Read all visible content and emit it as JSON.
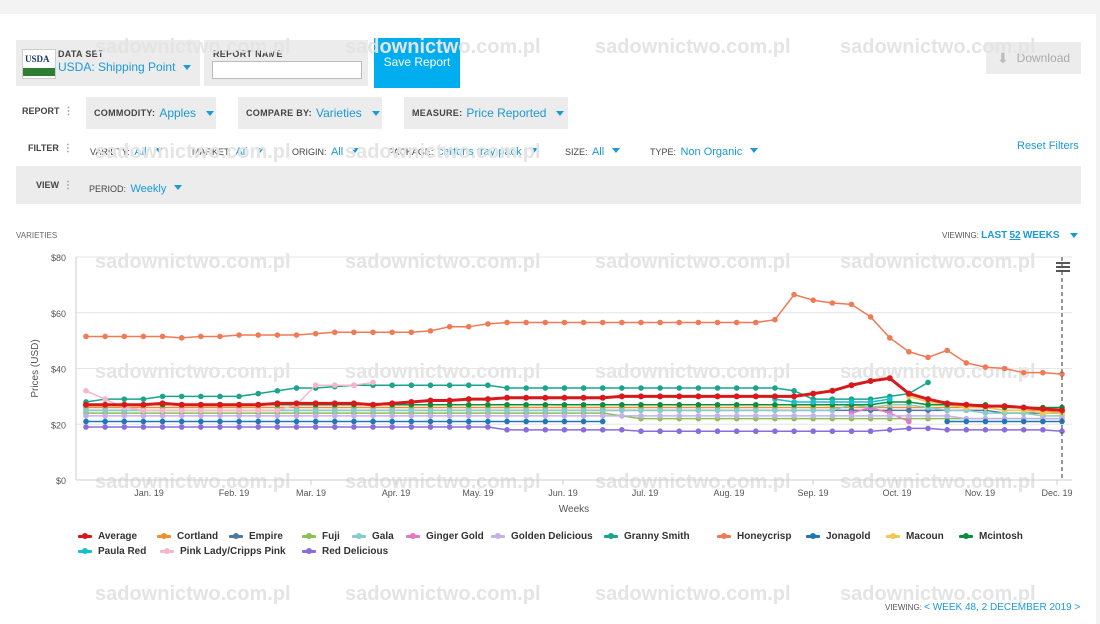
{
  "header": {
    "dataset_label": "DATA SET",
    "dataset_value": "USDA: Shipping Point",
    "logo_text": "USDA",
    "report_name_label": "REPORT NAME",
    "report_name_value": "",
    "save_label": "Save Report",
    "download_label": "Download"
  },
  "report_row": {
    "label": "REPORT",
    "commodity_label": "COMMODITY:",
    "commodity_value": "Apples",
    "compare_label": "COMPARE BY:",
    "compare_value": "Varieties",
    "measure_label": "MEASURE:",
    "measure_value": "Price Reported"
  },
  "filter_row": {
    "label": "FILTER",
    "variety_label": "VARIETY:",
    "variety_value": "All",
    "market_label": "MARKET:",
    "market_value": "All",
    "origin_label": "ORIGIN:",
    "origin_value": "All",
    "package_label": "PACKAGE:",
    "package_value": "cartons tray pack",
    "size_label": "SIZE:",
    "size_value": "All",
    "type_label": "TYPE:",
    "type_value": "Non Organic",
    "reset_label": "Reset Filters"
  },
  "view_row": {
    "label": "VIEW",
    "period_label": "PERIOD:",
    "period_value": "Weekly"
  },
  "chart_header": {
    "section_label": "VARIETIES",
    "viewing_label": "VIEWING:",
    "viewing_value_prefix": "LAST",
    "viewing_value_num": "52",
    "viewing_value_suffix": "WEEKS"
  },
  "footer": {
    "viewing_label": "VIEWING:",
    "viewing_value": "< WEEK 48, 2 DECEMBER 2019 >"
  },
  "watermark": "sadownictwo.com.pl",
  "chart_data": {
    "type": "line",
    "xlabel": "Weeks",
    "ylabel": "Prices (USD)",
    "ylim": [
      0,
      80
    ],
    "yticks": [
      "$0",
      "$20",
      "$40",
      "$60",
      "$80"
    ],
    "xticks": [
      "Jan. 19",
      "Feb. 19",
      "Mar. 19",
      "Apr. 19",
      "May. 19",
      "Jun. 19",
      "Jul. 19",
      "Aug. 19",
      "Sep. 19",
      "Oct. 19",
      "Nov. 19",
      "Dec. 19"
    ],
    "grid": true,
    "legend_position": "bottom",
    "series": [
      {
        "name": "Average",
        "color": "#d7191c",
        "width": 3,
        "values": [
          27,
          27,
          27,
          27,
          27.5,
          27,
          27,
          27,
          27,
          27,
          27.5,
          27.5,
          27.5,
          27.5,
          27.5,
          27,
          27.5,
          28,
          28.5,
          28.5,
          29,
          29,
          29.5,
          29.5,
          29.5,
          29.5,
          29.5,
          29.5,
          30,
          30,
          30,
          30,
          30,
          30,
          30,
          30,
          30,
          30,
          31,
          32,
          34,
          35.5,
          36.5,
          31,
          29,
          27.5,
          27,
          26.5,
          26.5,
          26,
          25.5,
          25
        ]
      },
      {
        "name": "Cortland",
        "color": "#f28e2b",
        "values": [
          26,
          26,
          26,
          26,
          26,
          26,
          26,
          26,
          26,
          26,
          26,
          26,
          26,
          26,
          26,
          26,
          26,
          26,
          26,
          26,
          26,
          26,
          26,
          26,
          26,
          26,
          26,
          26,
          26,
          26,
          26,
          26,
          26,
          26,
          26,
          26,
          26,
          26,
          26,
          26,
          26,
          26,
          26,
          26,
          26,
          26,
          26,
          26,
          25,
          25,
          25,
          24
        ]
      },
      {
        "name": "Empire",
        "color": "#4e79a7",
        "values": [
          25,
          25,
          25,
          25,
          25,
          25,
          25,
          25,
          25,
          25,
          25,
          25,
          25,
          25,
          25,
          25,
          25,
          25,
          25,
          25,
          25,
          25,
          25,
          25,
          25,
          25,
          25,
          25,
          25,
          25,
          25,
          25,
          25,
          25,
          25,
          25,
          25,
          25,
          25,
          25,
          25,
          25,
          25,
          25,
          25,
          25,
          25,
          25,
          24,
          24,
          24,
          24
        ]
      },
      {
        "name": "Fuji",
        "color": "#8cc152",
        "values": [
          24,
          24,
          24,
          24,
          24,
          24,
          24,
          24,
          24,
          24,
          24,
          24,
          24,
          24,
          24,
          24,
          24,
          24,
          24,
          24,
          24,
          24,
          24,
          24,
          24,
          24,
          24,
          24,
          23,
          22,
          22,
          22,
          22,
          22,
          22,
          22,
          22,
          22,
          22,
          22,
          22,
          22,
          22,
          22,
          22,
          22,
          22,
          22,
          22,
          22,
          22,
          22
        ]
      },
      {
        "name": "Gala",
        "color": "#86cccc",
        "values": [
          25,
          25,
          25,
          25,
          25,
          25,
          25,
          25,
          25,
          25,
          25,
          25,
          25,
          25,
          25,
          25,
          25,
          25,
          25,
          25,
          25,
          25,
          25,
          25,
          25,
          25,
          25,
          25,
          25,
          25,
          25,
          25,
          25,
          25,
          25,
          25,
          25,
          25,
          25,
          25,
          27,
          26,
          27,
          27,
          26,
          25,
          25,
          24,
          24,
          24,
          23,
          23
        ]
      },
      {
        "name": "Ginger Gold",
        "color": "#e377c2",
        "values": [
          null,
          null,
          null,
          null,
          null,
          null,
          null,
          null,
          null,
          null,
          null,
          null,
          null,
          null,
          null,
          null,
          null,
          null,
          null,
          null,
          null,
          null,
          null,
          null,
          null,
          null,
          null,
          null,
          null,
          null,
          null,
          null,
          null,
          null,
          null,
          null,
          null,
          null,
          null,
          null,
          24,
          26,
          24,
          21,
          null,
          null,
          null,
          null,
          null,
          null,
          null,
          null
        ]
      },
      {
        "name": "Golden Delicious",
        "color": "#c5b0e8",
        "values": [
          23,
          23,
          23,
          23,
          23,
          23,
          23,
          23,
          23,
          23,
          23,
          23,
          23,
          23,
          23,
          23,
          23,
          23,
          23,
          23,
          23,
          23,
          23,
          23,
          23,
          23,
          23,
          23,
          23,
          23,
          23,
          23,
          23,
          23,
          23,
          23,
          23,
          23,
          23,
          23,
          23,
          23,
          23,
          23,
          23,
          23,
          22,
          22,
          22,
          22,
          22,
          22
        ]
      },
      {
        "name": "Granny Smith",
        "color": "#19a58c",
        "values": [
          28,
          29,
          29,
          29,
          30,
          30,
          30,
          30,
          30,
          31,
          32,
          33,
          33,
          33.5,
          34,
          34,
          34,
          34,
          34,
          34,
          34,
          34,
          33,
          33,
          33,
          33,
          33,
          33,
          33,
          33,
          33,
          33,
          33,
          33,
          33,
          33,
          33,
          32,
          29,
          29,
          29,
          29,
          30,
          31,
          35,
          null,
          null,
          null,
          null,
          null,
          null,
          null
        ]
      },
      {
        "name": "Honeycrisp",
        "color": "#f07a55",
        "values": [
          51.5,
          51.5,
          51.5,
          51.5,
          51.5,
          51,
          51.5,
          51.5,
          52,
          52,
          52,
          52,
          52.5,
          53,
          53,
          53,
          53,
          53,
          53.5,
          55,
          55,
          56,
          56.5,
          56.5,
          56.5,
          56.5,
          56.5,
          56.5,
          56.5,
          56.5,
          56.5,
          56.5,
          56.5,
          56.5,
          56.5,
          56.5,
          57.5,
          66.5,
          64.5,
          63.5,
          63,
          58.5,
          51,
          46,
          44,
          46.5,
          42,
          40.5,
          40,
          38.5,
          38.5,
          38
        ]
      },
      {
        "name": "Jonagold",
        "color": "#1f77b4",
        "values": [
          21,
          21,
          21,
          21,
          21,
          21,
          21,
          21,
          21,
          21,
          21,
          21,
          21,
          21,
          21,
          21,
          21,
          21,
          21,
          21,
          21,
          21,
          21,
          21,
          21,
          21,
          21,
          21,
          null,
          null,
          null,
          null,
          null,
          null,
          null,
          null,
          null,
          null,
          null,
          null,
          null,
          null,
          null,
          null,
          null,
          21,
          21,
          21,
          21,
          21,
          21,
          21
        ]
      },
      {
        "name": "Macoun",
        "color": "#f0c850",
        "values": [
          null,
          null,
          null,
          null,
          null,
          null,
          null,
          null,
          null,
          null,
          null,
          null,
          null,
          null,
          null,
          null,
          null,
          null,
          null,
          null,
          null,
          null,
          null,
          null,
          null,
          null,
          null,
          null,
          null,
          null,
          null,
          null,
          null,
          null,
          null,
          null,
          null,
          null,
          null,
          null,
          null,
          null,
          null,
          30,
          28,
          27,
          26,
          26,
          25,
          25,
          24,
          24
        ]
      },
      {
        "name": "Mcintosh",
        "color": "#0a8f3c",
        "values": [
          27,
          27,
          27,
          27,
          27,
          27,
          27,
          27,
          27,
          27,
          27,
          27,
          27,
          27,
          27,
          27,
          27,
          27,
          27,
          27,
          27,
          27,
          27,
          27,
          27,
          27,
          27,
          27,
          27,
          27,
          27,
          27,
          27,
          27,
          27,
          27,
          27,
          27,
          27,
          27,
          27,
          27,
          28,
          28,
          27,
          27,
          27,
          27,
          26,
          26,
          26,
          26
        ]
      },
      {
        "name": "Paula Red",
        "color": "#17becf",
        "values": [
          null,
          null,
          null,
          null,
          null,
          null,
          null,
          null,
          null,
          null,
          null,
          null,
          null,
          null,
          null,
          null,
          null,
          null,
          null,
          null,
          null,
          null,
          null,
          null,
          null,
          null,
          null,
          null,
          null,
          null,
          null,
          null,
          null,
          null,
          null,
          null,
          29,
          28,
          28,
          28,
          28,
          28,
          29,
          null,
          null,
          null,
          null,
          null,
          null,
          null,
          null,
          null
        ]
      },
      {
        "name": "Pink Lady/Cripps Pink",
        "color": "#f7b6c8",
        "values": [
          32,
          29,
          26,
          25,
          25,
          25,
          25,
          25,
          25,
          25,
          25,
          27,
          34,
          34,
          34,
          35,
          null,
          null,
          null,
          null,
          null,
          null,
          null,
          null,
          null,
          null,
          null,
          null,
          null,
          null,
          null,
          null,
          null,
          null,
          null,
          null,
          null,
          null,
          null,
          null,
          null,
          null,
          null,
          null,
          null,
          null,
          null,
          null,
          null,
          null,
          null,
          null
        ]
      },
      {
        "name": "Red Delicious",
        "color": "#8a6be0",
        "values": [
          19,
          19,
          19,
          19,
          19,
          19,
          19,
          19,
          19,
          19,
          19,
          19,
          19,
          19,
          19,
          19,
          19,
          19,
          19,
          19,
          19,
          19,
          18,
          18,
          18,
          18,
          18,
          18,
          18,
          17.5,
          17.5,
          17.5,
          17.5,
          17.5,
          17.5,
          17.5,
          17.5,
          17.5,
          17.5,
          17.5,
          17.5,
          17.5,
          18,
          18.5,
          18.5,
          18,
          18,
          18,
          18,
          18,
          18,
          17.5
        ]
      }
    ]
  }
}
